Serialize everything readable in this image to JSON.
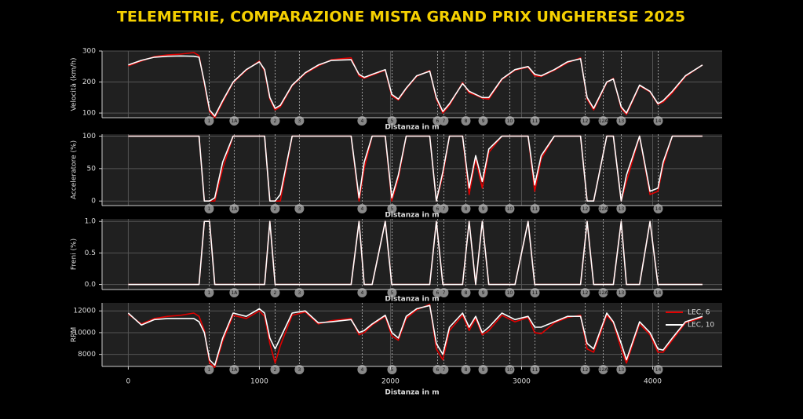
{
  "title": "TELEMETRIE, COMPARAZIONE MISTA GRAND PRIX UNGHERESE 2025",
  "corners": [
    {
      "label": "1",
      "distance": 617
    },
    {
      "label": "1A",
      "distance": 808
    },
    {
      "label": "2",
      "distance": 1120
    },
    {
      "label": "3",
      "distance": 1305
    },
    {
      "label": "4",
      "distance": 1784
    },
    {
      "label": "5",
      "distance": 2012
    },
    {
      "label": "6",
      "distance": 2359
    },
    {
      "label": "7",
      "distance": 2407
    },
    {
      "label": "8",
      "distance": 2575
    },
    {
      "label": "9",
      "distance": 2707
    },
    {
      "label": "10",
      "distance": 2910
    },
    {
      "label": "11",
      "distance": 3102
    },
    {
      "label": "12",
      "distance": 3485
    },
    {
      "label": "12A",
      "distance": 3623
    },
    {
      "label": "13",
      "distance": 3760
    },
    {
      "label": "14",
      "distance": 4042
    }
  ],
  "chart_data": [
    {
      "type": "line",
      "ylabel": "Velocità (km/h)",
      "xlabel": "Distanza in m",
      "xlim": [
        -200,
        4530
      ],
      "ylim": [
        85,
        300
      ],
      "yticks": [
        100,
        200,
        300
      ],
      "grid": true,
      "x": [
        0,
        100,
        200,
        300,
        400,
        500,
        540,
        580,
        620,
        660,
        720,
        800,
        900,
        1000,
        1040,
        1080,
        1120,
        1160,
        1250,
        1350,
        1450,
        1550,
        1700,
        1760,
        1800,
        1860,
        1960,
        2010,
        2060,
        2120,
        2200,
        2300,
        2350,
        2400,
        2450,
        2550,
        2600,
        2650,
        2700,
        2750,
        2850,
        2950,
        3050,
        3100,
        3150,
        3250,
        3350,
        3450,
        3500,
        3550,
        3650,
        3700,
        3760,
        3800,
        3900,
        3980,
        4040,
        4080,
        4150,
        4250,
        4380
      ],
      "series": [
        {
          "name": "LEC, 6",
          "color": "#e00000",
          "values": [
            252,
            268,
            282,
            287,
            290,
            295,
            285,
            195,
            105,
            85,
            135,
            198,
            238,
            268,
            235,
            145,
            110,
            120,
            188,
            228,
            252,
            272,
            278,
            220,
            212,
            222,
            238,
            155,
            142,
            178,
            218,
            237,
            145,
            100,
            125,
            198,
            165,
            158,
            148,
            145,
            208,
            238,
            248,
            220,
            218,
            238,
            262,
            278,
            145,
            110,
            198,
            212,
            115,
            95,
            188,
            168,
            128,
            135,
            165,
            218,
            255
          ]
        },
        {
          "name": "LEC, 10",
          "color": "#ffffff",
          "values": [
            255,
            270,
            280,
            283,
            284,
            283,
            280,
            200,
            110,
            90,
            140,
            200,
            240,
            265,
            240,
            150,
            115,
            125,
            190,
            230,
            255,
            270,
            272,
            225,
            215,
            225,
            240,
            160,
            145,
            180,
            220,
            235,
            150,
            105,
            130,
            195,
            170,
            160,
            150,
            150,
            210,
            240,
            250,
            225,
            220,
            240,
            265,
            275,
            150,
            115,
            200,
            210,
            120,
            100,
            190,
            170,
            130,
            140,
            170,
            220,
            255
          ]
        }
      ]
    },
    {
      "type": "line",
      "ylabel": "Acceleratore (%)",
      "xlabel": "Distanza in m",
      "xlim": [
        -200,
        4530
      ],
      "ylim": [
        -7,
        103
      ],
      "yticks": [
        0,
        50,
        100
      ],
      "grid": true,
      "x": [
        0,
        100,
        200,
        300,
        400,
        500,
        540,
        580,
        620,
        660,
        720,
        800,
        900,
        1000,
        1040,
        1080,
        1120,
        1160,
        1250,
        1350,
        1450,
        1550,
        1700,
        1760,
        1800,
        1860,
        1960,
        2010,
        2060,
        2120,
        2200,
        2300,
        2350,
        2400,
        2450,
        2550,
        2600,
        2650,
        2700,
        2750,
        2850,
        2950,
        3050,
        3100,
        3150,
        3250,
        3350,
        3450,
        3500,
        3550,
        3650,
        3700,
        3760,
        3800,
        3900,
        3980,
        4040,
        4080,
        4150,
        4250,
        4380
      ],
      "series": [
        {
          "name": "LEC, 6",
          "color": "#e00000",
          "values": [
            100,
            100,
            100,
            100,
            100,
            100,
            100,
            0,
            0,
            0,
            50,
            100,
            100,
            100,
            100,
            0,
            0,
            0,
            100,
            100,
            100,
            100,
            100,
            0,
            50,
            100,
            100,
            0,
            35,
            100,
            100,
            100,
            0,
            40,
            100,
            100,
            10,
            65,
            20,
            75,
            100,
            100,
            100,
            15,
            65,
            100,
            100,
            100,
            0,
            0,
            100,
            100,
            0,
            30,
            100,
            10,
            15,
            55,
            100,
            100,
            100
          ]
        },
        {
          "name": "LEC, 10",
          "color": "#ffffff",
          "values": [
            100,
            100,
            100,
            100,
            100,
            100,
            100,
            0,
            0,
            5,
            60,
            100,
            100,
            100,
            100,
            0,
            0,
            10,
            100,
            100,
            100,
            100,
            100,
            5,
            60,
            100,
            100,
            5,
            40,
            100,
            100,
            100,
            0,
            45,
            100,
            100,
            20,
            70,
            30,
            80,
            100,
            100,
            100,
            25,
            70,
            100,
            100,
            100,
            0,
            0,
            100,
            100,
            0,
            40,
            100,
            15,
            20,
            60,
            100,
            100,
            100
          ]
        }
      ]
    },
    {
      "type": "line",
      "ylabel": "Freni (%)",
      "xlabel": "Distanza in m",
      "xlim": [
        -200,
        4530
      ],
      "ylim": [
        -0.08,
        1.04
      ],
      "yticks": [
        {
          "value": 0,
          "label": "0.0"
        },
        {
          "value": 0.5,
          "label": "0.5"
        },
        {
          "value": 1,
          "label": "1.0"
        }
      ],
      "grid": true,
      "x": [
        0,
        100,
        200,
        300,
        400,
        500,
        540,
        580,
        620,
        660,
        720,
        800,
        900,
        1000,
        1040,
        1080,
        1120,
        1160,
        1250,
        1350,
        1450,
        1550,
        1700,
        1760,
        1800,
        1860,
        1960,
        2010,
        2060,
        2120,
        2200,
        2300,
        2350,
        2400,
        2450,
        2550,
        2600,
        2650,
        2700,
        2750,
        2850,
        2950,
        3050,
        3100,
        3150,
        3250,
        3350,
        3450,
        3500,
        3550,
        3650,
        3700,
        3760,
        3800,
        3900,
        3980,
        4040,
        4080,
        4150,
        4250,
        4380
      ],
      "series": [
        {
          "name": "LEC, 6",
          "color": "#e00000",
          "values": [
            0,
            0,
            0,
            0,
            0,
            0,
            0,
            1,
            1,
            0,
            0,
            0,
            0,
            0,
            0,
            1,
            0,
            0,
            0,
            0,
            0,
            0,
            0,
            1,
            0,
            0,
            1,
            0,
            0,
            0,
            0,
            0,
            1,
            0,
            0,
            0,
            1,
            0,
            1,
            0,
            0,
            0,
            1,
            0,
            0,
            0,
            0,
            0,
            1,
            0,
            0,
            0,
            1,
            0,
            0,
            1,
            0,
            0,
            0,
            0,
            0
          ]
        },
        {
          "name": "LEC, 10",
          "color": "#ffffff",
          "values": [
            0,
            0,
            0,
            0,
            0,
            0,
            0,
            1,
            1,
            0,
            0,
            0,
            0,
            0,
            0,
            1,
            0,
            0,
            0,
            0,
            0,
            0,
            0,
            1,
            0,
            0,
            1,
            0,
            0,
            0,
            0,
            0,
            1,
            0,
            0,
            0,
            1,
            0,
            1,
            0,
            0,
            0,
            1,
            0,
            0,
            0,
            0,
            0,
            1,
            0,
            0,
            0,
            1,
            0,
            0,
            1,
            0,
            0,
            0,
            0,
            0
          ]
        }
      ]
    },
    {
      "type": "line",
      "ylabel": "RPM",
      "xlabel": "Distanza in m",
      "xlim": [
        -200,
        4530
      ],
      "ylim": [
        6890,
        12740
      ],
      "yticks": [
        8000,
        10000,
        12000
      ],
      "xticks": [
        0,
        1000,
        2000,
        3000,
        4000
      ],
      "grid": true,
      "legend": "upper right",
      "x": [
        0,
        100,
        200,
        300,
        400,
        500,
        540,
        580,
        620,
        660,
        720,
        800,
        900,
        1000,
        1040,
        1080,
        1120,
        1160,
        1250,
        1350,
        1450,
        1550,
        1700,
        1760,
        1800,
        1860,
        1960,
        2010,
        2060,
        2120,
        2200,
        2300,
        2350,
        2400,
        2450,
        2550,
        2600,
        2650,
        2700,
        2750,
        2850,
        2950,
        3050,
        3100,
        3150,
        3250,
        3350,
        3450,
        3500,
        3550,
        3650,
        3700,
        3760,
        3800,
        3900,
        3980,
        4040,
        4080,
        4150,
        4250,
        4380
      ],
      "series": [
        {
          "name": "LEC, 6",
          "color": "#e00000",
          "values": [
            11700,
            10800,
            11300,
            11500,
            11600,
            11800,
            11500,
            10200,
            7200,
            6800,
            9200,
            11600,
            11300,
            12000,
            11500,
            9000,
            7200,
            8800,
            11600,
            11900,
            10800,
            11100,
            11300,
            9800,
            10000,
            10700,
            11500,
            9700,
            9300,
            11300,
            12100,
            12600,
            8500,
            7500,
            10200,
            11600,
            10200,
            11300,
            9800,
            10200,
            11600,
            11000,
            11400,
            10000,
            9900,
            10900,
            11400,
            11600,
            8500,
            8200,
            11600,
            10900,
            8500,
            7200,
            10800,
            9800,
            8200,
            8200,
            9300,
            10900,
            11400
          ]
        },
        {
          "name": "LEC, 10",
          "color": "#ffffff",
          "values": [
            11800,
            10700,
            11200,
            11300,
            11300,
            11300,
            11000,
            10000,
            7500,
            7000,
            9500,
            11800,
            11500,
            12200,
            11800,
            9500,
            8500,
            9500,
            11800,
            12000,
            10900,
            11000,
            11200,
            10000,
            10200,
            10800,
            11600,
            10000,
            9500,
            11500,
            12200,
            12500,
            9000,
            8000,
            10500,
            11800,
            10500,
            11500,
            10000,
            10500,
            11800,
            11200,
            11500,
            10500,
            10500,
            11000,
            11500,
            11500,
            9000,
            8500,
            11800,
            11000,
            9000,
            7500,
            11000,
            10000,
            8500,
            8400,
            9500,
            11000,
            11500
          ]
        }
      ]
    }
  ]
}
